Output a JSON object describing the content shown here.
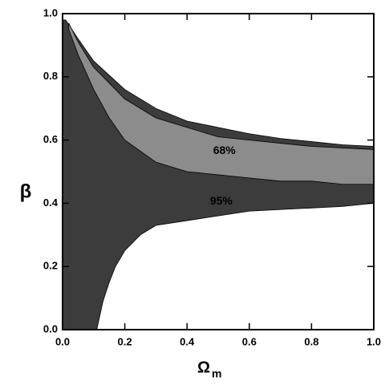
{
  "chart_data": {
    "type": "contour",
    "xlabel": "Ω",
    "xlabel_sub": "m",
    "ylabel": "β",
    "xlim": [
      0,
      1
    ],
    "ylim": [
      0,
      1
    ],
    "xticks": [
      {
        "value": 0,
        "label": "0.0"
      },
      {
        "value": 0.2,
        "label": "0.2"
      },
      {
        "value": 0.4,
        "label": "0.4"
      },
      {
        "value": 0.6,
        "label": "0.6"
      },
      {
        "value": 0.8,
        "label": "0.8"
      },
      {
        "value": 1,
        "label": "1.0"
      }
    ],
    "yticks": [
      {
        "value": 0,
        "label": "0.0"
      },
      {
        "value": 0.2,
        "label": "0.2"
      },
      {
        "value": 0.4,
        "label": "0.4"
      },
      {
        "value": 0.6,
        "label": "0.6"
      },
      {
        "value": 0.8,
        "label": "0.8"
      },
      {
        "value": 1,
        "label": "1.0"
      }
    ],
    "series": [
      {
        "name": "95%",
        "color": "#3c3c3c",
        "x": [
          0,
          0.01,
          0.05,
          0.1,
          0.2,
          0.3,
          0.4,
          0.5,
          0.6,
          0.7,
          0.8,
          0.9,
          1,
          1,
          0.9,
          0.8,
          0.7,
          0.6,
          0.5,
          0.4,
          0.3,
          0.25,
          0.2,
          0.17,
          0.15,
          0.13,
          0.11,
          0
        ],
        "y": [
          0.98,
          0.98,
          0.92,
          0.85,
          0.76,
          0.7,
          0.66,
          0.64,
          0.62,
          0.605,
          0.595,
          0.585,
          0.58,
          0.4,
          0.39,
          0.385,
          0.38,
          0.375,
          0.36,
          0.345,
          0.33,
          0.3,
          0.25,
          0.2,
          0.15,
          0.09,
          0,
          0
        ]
      },
      {
        "name": "68%",
        "color": "#8c8c8c",
        "x": [
          0.02,
          0.05,
          0.1,
          0.2,
          0.3,
          0.4,
          0.5,
          0.6,
          0.7,
          0.8,
          0.9,
          1,
          1,
          0.9,
          0.8,
          0.7,
          0.6,
          0.5,
          0.4,
          0.3,
          0.2,
          0.15,
          0.1,
          0.05,
          0.02
        ],
        "y": [
          0.97,
          0.91,
          0.83,
          0.73,
          0.67,
          0.64,
          0.61,
          0.6,
          0.59,
          0.58,
          0.575,
          0.57,
          0.46,
          0.46,
          0.47,
          0.47,
          0.48,
          0.49,
          0.5,
          0.53,
          0.6,
          0.67,
          0.76,
          0.87,
          0.95
        ]
      }
    ]
  }
}
